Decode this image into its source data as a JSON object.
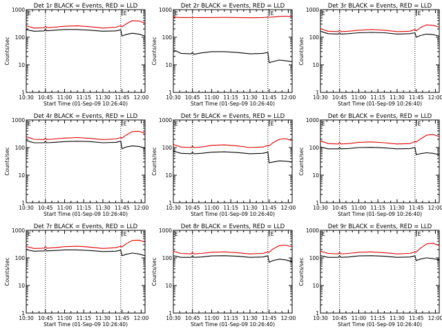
{
  "chart_data": [
    {
      "type": "line",
      "title": "Det 1r BLACK = Events, RED = LLD",
      "xlabel": "Start Time (01-Sep-09 10:26:40)",
      "ylabel": "Counts/sec",
      "y_scale": "log",
      "ylim": [
        1,
        1000
      ],
      "xlim": [
        "10:30",
        "12:03"
      ],
      "x_ticks": [
        "10:30",
        "10:45",
        "11:00",
        "11:15",
        "11:30",
        "11:45",
        "12:00"
      ],
      "y_ticks": [
        "1",
        "10",
        "100",
        "1000"
      ],
      "marker_label": "E",
      "marker_times": [
        "10:30",
        "11:45"
      ],
      "vlines": [
        "10:45",
        "11:44"
      ],
      "series": [
        {
          "color": "#000000",
          "x": [
            "10:30",
            "10:36",
            "10:44",
            "10:45",
            "10:46",
            "10:52",
            "11:00",
            "11:10",
            "11:20",
            "11:30",
            "11:40",
            "11:44",
            "11:45",
            "11:48",
            "11:53",
            "11:58",
            "12:03"
          ],
          "y": [
            190,
            165,
            170,
            195,
            172,
            180,
            190,
            190,
            180,
            165,
            170,
            185,
            110,
            125,
            140,
            130,
            110
          ]
        },
        {
          "color": "#e00000",
          "x": [
            "10:30",
            "10:36",
            "10:44",
            "10:45",
            "10:46",
            "10:52",
            "11:00",
            "11:10",
            "11:20",
            "11:30",
            "11:40",
            "11:44",
            "11:45",
            "11:48",
            "11:53",
            "11:58",
            "12:03"
          ],
          "y": [
            260,
            215,
            220,
            255,
            222,
            230,
            250,
            260,
            240,
            215,
            230,
            260,
            240,
            300,
            400,
            390,
            330
          ]
        }
      ]
    },
    {
      "type": "line",
      "title": "Det 2r BLACK = Events, RED = LLD",
      "xlabel": "Start Time (01-Sep-09 10:26:40)",
      "ylabel": "Counts/sec",
      "y_scale": "log",
      "ylim": [
        1,
        1000
      ],
      "xlim": [
        "10:30",
        "12:03"
      ],
      "x_ticks": [
        "10:30",
        "10:45",
        "11:00",
        "11:15",
        "11:30",
        "11:45",
        "12:00"
      ],
      "y_ticks": [
        "1",
        "10",
        "100",
        "1000"
      ],
      "marker_label": "E",
      "marker_times": [
        "10:30",
        "11:45"
      ],
      "vlines": [
        "10:45",
        "11:44"
      ],
      "series": [
        {
          "color": "#000000",
          "x": [
            "10:30",
            "10:36",
            "10:44",
            "10:45",
            "10:46",
            "10:52",
            "11:00",
            "11:10",
            "11:20",
            "11:30",
            "11:40",
            "11:44",
            "11:45",
            "11:48",
            "11:53",
            "11:58",
            "12:03"
          ],
          "y": [
            35,
            26,
            25,
            28,
            24,
            27,
            30,
            30,
            28,
            25,
            26,
            28,
            12,
            13,
            15,
            14,
            13
          ]
        },
        {
          "color": "#e00000",
          "x": [
            "10:30",
            "10:36",
            "10:44",
            "10:45",
            "10:46",
            "10:52",
            "11:00",
            "11:10",
            "11:20",
            "11:30",
            "11:40",
            "11:44",
            "11:45",
            "11:48",
            "11:53",
            "11:58",
            "12:03"
          ],
          "y": [
            540,
            520,
            520,
            530,
            515,
            520,
            520,
            525,
            520,
            510,
            520,
            535,
            530,
            540,
            570,
            580,
            560
          ]
        }
      ]
    },
    {
      "type": "line",
      "title": "Det 3r BLACK = Events, RED = LLD",
      "xlabel": "Start Time (01-Sep-09 10:26:40)",
      "ylabel": "Counts/sec",
      "y_scale": "log",
      "ylim": [
        1,
        1000
      ],
      "xlim": [
        "10:30",
        "12:03"
      ],
      "x_ticks": [
        "10:30",
        "10:45",
        "11:00",
        "11:15",
        "11:30",
        "11:45",
        "12:00"
      ],
      "y_ticks": [
        "1",
        "10",
        "100",
        "1000"
      ],
      "marker_label": "E",
      "marker_times": [
        "10:30",
        "11:45"
      ],
      "vlines": [
        "10:45",
        "11:44"
      ],
      "series": [
        {
          "color": "#000000",
          "x": [
            "10:30",
            "10:36",
            "10:44",
            "10:45",
            "10:46",
            "10:52",
            "11:00",
            "11:10",
            "11:20",
            "11:30",
            "11:40",
            "11:44",
            "11:45",
            "11:48",
            "11:53",
            "11:58",
            "12:03"
          ],
          "y": [
            165,
            135,
            130,
            145,
            130,
            135,
            145,
            150,
            145,
            130,
            135,
            145,
            100,
            115,
            130,
            125,
            110
          ]
        },
        {
          "color": "#e00000",
          "x": [
            "10:30",
            "10:36",
            "10:44",
            "10:45",
            "10:46",
            "10:52",
            "11:00",
            "11:10",
            "11:20",
            "11:30",
            "11:40",
            "11:44",
            "11:45",
            "11:48",
            "11:53",
            "11:58",
            "12:03"
          ],
          "y": [
            205,
            165,
            160,
            180,
            160,
            165,
            180,
            190,
            180,
            160,
            165,
            190,
            170,
            220,
            280,
            270,
            235
          ]
        }
      ]
    },
    {
      "type": "line",
      "title": "Det 4r BLACK = Events, RED = LLD",
      "xlabel": "Start Time (01-Sep-09 10:26:40)",
      "ylabel": "Counts/sec",
      "y_scale": "log",
      "ylim": [
        1,
        1000
      ],
      "xlim": [
        "10:30",
        "12:03"
      ],
      "x_ticks": [
        "10:30",
        "10:45",
        "11:00",
        "11:15",
        "11:30",
        "11:45",
        "12:00"
      ],
      "y_ticks": [
        "1",
        "10",
        "100",
        "1000"
      ],
      "marker_label": "E",
      "marker_times": [
        "10:30",
        "11:45"
      ],
      "vlines": [
        "10:45",
        "11:44"
      ],
      "series": [
        {
          "color": "#000000",
          "x": [
            "10:30",
            "10:36",
            "10:44",
            "10:45",
            "10:46",
            "10:52",
            "11:00",
            "11:10",
            "11:20",
            "11:30",
            "11:40",
            "11:44",
            "11:45",
            "11:48",
            "11:53",
            "11:58",
            "12:03"
          ],
          "y": [
            180,
            150,
            150,
            170,
            150,
            155,
            165,
            170,
            165,
            150,
            155,
            170,
            90,
            105,
            115,
            110,
            95
          ]
        },
        {
          "color": "#e00000",
          "x": [
            "10:30",
            "10:36",
            "10:44",
            "10:45",
            "10:46",
            "10:52",
            "11:00",
            "11:10",
            "11:20",
            "11:30",
            "11:40",
            "11:44",
            "11:45",
            "11:48",
            "11:53",
            "11:58",
            "12:03"
          ],
          "y": [
            250,
            200,
            195,
            220,
            195,
            205,
            220,
            230,
            215,
            195,
            205,
            230,
            220,
            280,
            380,
            390,
            330
          ]
        }
      ]
    },
    {
      "type": "line",
      "title": "Det 5r BLACK = Events, RED = LLD",
      "xlabel": "Start Time (01-Sep-09 10:26:40)",
      "ylabel": "Counts/sec",
      "y_scale": "log",
      "ylim": [
        1,
        1000
      ],
      "xlim": [
        "10:30",
        "12:03"
      ],
      "x_ticks": [
        "10:30",
        "10:45",
        "11:00",
        "11:15",
        "11:30",
        "11:45",
        "12:00"
      ],
      "y_ticks": [
        "1",
        "10",
        "100",
        "1000"
      ],
      "marker_label": "E",
      "marker_times": [
        "10:30",
        "11:45"
      ],
      "vlines": [
        "10:45",
        "11:44"
      ],
      "series": [
        {
          "color": "#000000",
          "x": [
            "10:30",
            "10:36",
            "10:44",
            "10:45",
            "10:46",
            "10:52",
            "11:00",
            "11:10",
            "11:20",
            "11:30",
            "11:40",
            "11:44",
            "11:45",
            "11:48",
            "11:53",
            "11:58",
            "12:03"
          ],
          "y": [
            75,
            62,
            60,
            68,
            60,
            62,
            68,
            70,
            66,
            60,
            62,
            68,
            28,
            30,
            33,
            32,
            30
          ]
        },
        {
          "color": "#e00000",
          "x": [
            "10:30",
            "10:36",
            "10:44",
            "10:45",
            "10:46",
            "10:52",
            "11:00",
            "11:10",
            "11:20",
            "11:30",
            "11:40",
            "11:44",
            "11:45",
            "11:48",
            "11:53",
            "11:58",
            "12:03"
          ],
          "y": [
            130,
            105,
            100,
            115,
            100,
            105,
            120,
            125,
            115,
            100,
            105,
            120,
            115,
            150,
            200,
            210,
            180
          ]
        }
      ]
    },
    {
      "type": "line",
      "title": "Det 6r BLACK = Events, RED = LLD",
      "xlabel": "Start Time (01-Sep-09 10:26:40)",
      "ylabel": "Counts/sec",
      "y_scale": "log",
      "ylim": [
        1,
        1000
      ],
      "xlim": [
        "10:30",
        "12:03"
      ],
      "x_ticks": [
        "10:30",
        "10:45",
        "11:00",
        "11:15",
        "11:30",
        "11:45",
        "12:00"
      ],
      "y_ticks": [
        "1",
        "10",
        "100",
        "1000"
      ],
      "marker_label": "E",
      "marker_times": [
        "10:30",
        "11:45"
      ],
      "vlines": [
        "10:45",
        "11:44"
      ],
      "series": [
        {
          "color": "#000000",
          "x": [
            "10:30",
            "10:36",
            "10:44",
            "10:45",
            "10:46",
            "10:52",
            "11:00",
            "11:10",
            "11:20",
            "11:30",
            "11:40",
            "11:44",
            "11:45",
            "11:48",
            "11:53",
            "11:58",
            "12:03"
          ],
          "y": [
            105,
            90,
            90,
            100,
            90,
            92,
            100,
            102,
            98,
            90,
            92,
            100,
            55,
            60,
            65,
            62,
            55
          ]
        },
        {
          "color": "#e00000",
          "x": [
            "10:30",
            "10:36",
            "10:44",
            "10:45",
            "10:46",
            "10:52",
            "11:00",
            "11:10",
            "11:20",
            "11:30",
            "11:40",
            "11:44",
            "11:45",
            "11:48",
            "11:53",
            "11:58",
            "12:03"
          ],
          "y": [
            175,
            140,
            135,
            155,
            135,
            140,
            155,
            160,
            150,
            135,
            140,
            165,
            160,
            200,
            280,
            300,
            250
          ]
        }
      ]
    },
    {
      "type": "line",
      "title": "Det 7r BLACK = Events, RED = LLD",
      "xlabel": "Start Time (01-Sep-09 10:26:40)",
      "ylabel": "Counts/sec",
      "y_scale": "log",
      "ylim": [
        1,
        1000
      ],
      "xlim": [
        "10:30",
        "12:03"
      ],
      "x_ticks": [
        "10:30",
        "10:45",
        "11:00",
        "11:15",
        "11:30",
        "11:45",
        "12:00"
      ],
      "y_ticks": [
        "1",
        "10",
        "100",
        "1000"
      ],
      "marker_label": "E",
      "marker_times": [
        "10:30",
        "11:45"
      ],
      "vlines": [
        "10:45",
        "11:44"
      ],
      "series": [
        {
          "color": "#000000",
          "x": [
            "10:30",
            "10:36",
            "10:44",
            "10:45",
            "10:46",
            "10:52",
            "11:00",
            "11:10",
            "11:20",
            "11:30",
            "11:40",
            "11:44",
            "11:45",
            "11:48",
            "11:53",
            "11:58",
            "12:03"
          ],
          "y": [
            200,
            175,
            180,
            205,
            180,
            185,
            195,
            195,
            185,
            170,
            175,
            190,
            120,
            135,
            150,
            140,
            120
          ]
        },
        {
          "color": "#e00000",
          "x": [
            "10:30",
            "10:36",
            "10:44",
            "10:45",
            "10:46",
            "10:52",
            "11:00",
            "11:10",
            "11:20",
            "11:30",
            "11:40",
            "11:44",
            "11:45",
            "11:48",
            "11:53",
            "11:58",
            "12:03"
          ],
          "y": [
            260,
            220,
            225,
            260,
            225,
            235,
            255,
            265,
            245,
            220,
            235,
            265,
            250,
            320,
            430,
            440,
            380
          ]
        }
      ]
    },
    {
      "type": "line",
      "title": "Det 8r BLACK = Events, RED = LLD",
      "xlabel": "Start Time (01-Sep-09 10:26:40)",
      "ylabel": "Counts/sec",
      "y_scale": "log",
      "ylim": [
        1,
        1000
      ],
      "xlim": [
        "10:30",
        "12:03"
      ],
      "x_ticks": [
        "10:30",
        "10:45",
        "11:00",
        "11:15",
        "11:30",
        "11:45",
        "12:00"
      ],
      "y_ticks": [
        "1",
        "10",
        "100",
        "1000"
      ],
      "marker_label": "E",
      "marker_times": [
        "10:30",
        "11:45"
      ],
      "vlines": [
        "10:45",
        "11:44"
      ],
      "series": [
        {
          "color": "#000000",
          "x": [
            "10:30",
            "10:36",
            "10:44",
            "10:45",
            "10:46",
            "10:52",
            "11:00",
            "11:10",
            "11:20",
            "11:30",
            "11:40",
            "11:44",
            "11:45",
            "11:48",
            "11:53",
            "11:58",
            "12:03"
          ],
          "y": [
            120,
            105,
            105,
            118,
            105,
            108,
            118,
            120,
            115,
            105,
            108,
            118,
            70,
            80,
            90,
            85,
            72
          ]
        },
        {
          "color": "#e00000",
          "x": [
            "10:30",
            "10:36",
            "10:44",
            "10:45",
            "10:46",
            "10:52",
            "11:00",
            "11:10",
            "11:20",
            "11:30",
            "11:40",
            "11:44",
            "11:45",
            "11:48",
            "11:53",
            "11:58",
            "12:03"
          ],
          "y": [
            175,
            145,
            140,
            160,
            140,
            145,
            160,
            165,
            155,
            140,
            145,
            165,
            160,
            210,
            280,
            290,
            250
          ]
        }
      ]
    },
    {
      "type": "line",
      "title": "Det 9r BLACK = Events, RED = LLD",
      "xlabel": "Start Time (01-Sep-09 10:26:40)",
      "ylabel": "Counts/sec",
      "y_scale": "log",
      "ylim": [
        1,
        1000
      ],
      "xlim": [
        "10:30",
        "12:03"
      ],
      "x_ticks": [
        "10:30",
        "10:45",
        "11:00",
        "11:15",
        "11:30",
        "11:45",
        "12:00"
      ],
      "y_ticks": [
        "1",
        "10",
        "100",
        "1000"
      ],
      "marker_label": "E",
      "marker_times": [
        "10:30",
        "11:45"
      ],
      "vlines": [
        "10:45",
        "11:44"
      ],
      "series": [
        {
          "color": "#000000",
          "x": [
            "10:30",
            "10:36",
            "10:44",
            "10:45",
            "10:46",
            "10:52",
            "11:00",
            "11:10",
            "11:20",
            "11:30",
            "11:40",
            "11:44",
            "11:45",
            "11:48",
            "11:53",
            "11:58",
            "12:03"
          ],
          "y": [
            120,
            105,
            105,
            120,
            105,
            108,
            118,
            120,
            115,
            105,
            108,
            118,
            80,
            90,
            100,
            95,
            82
          ]
        },
        {
          "color": "#e00000",
          "x": [
            "10:30",
            "10:36",
            "10:44",
            "10:45",
            "10:46",
            "10:52",
            "11:00",
            "11:10",
            "11:20",
            "11:30",
            "11:40",
            "11:44",
            "11:45",
            "11:48",
            "11:53",
            "11:58",
            "12:03"
          ],
          "y": [
            175,
            145,
            140,
            160,
            140,
            145,
            160,
            165,
            155,
            140,
            145,
            165,
            165,
            220,
            320,
            340,
            280
          ]
        }
      ]
    }
  ]
}
